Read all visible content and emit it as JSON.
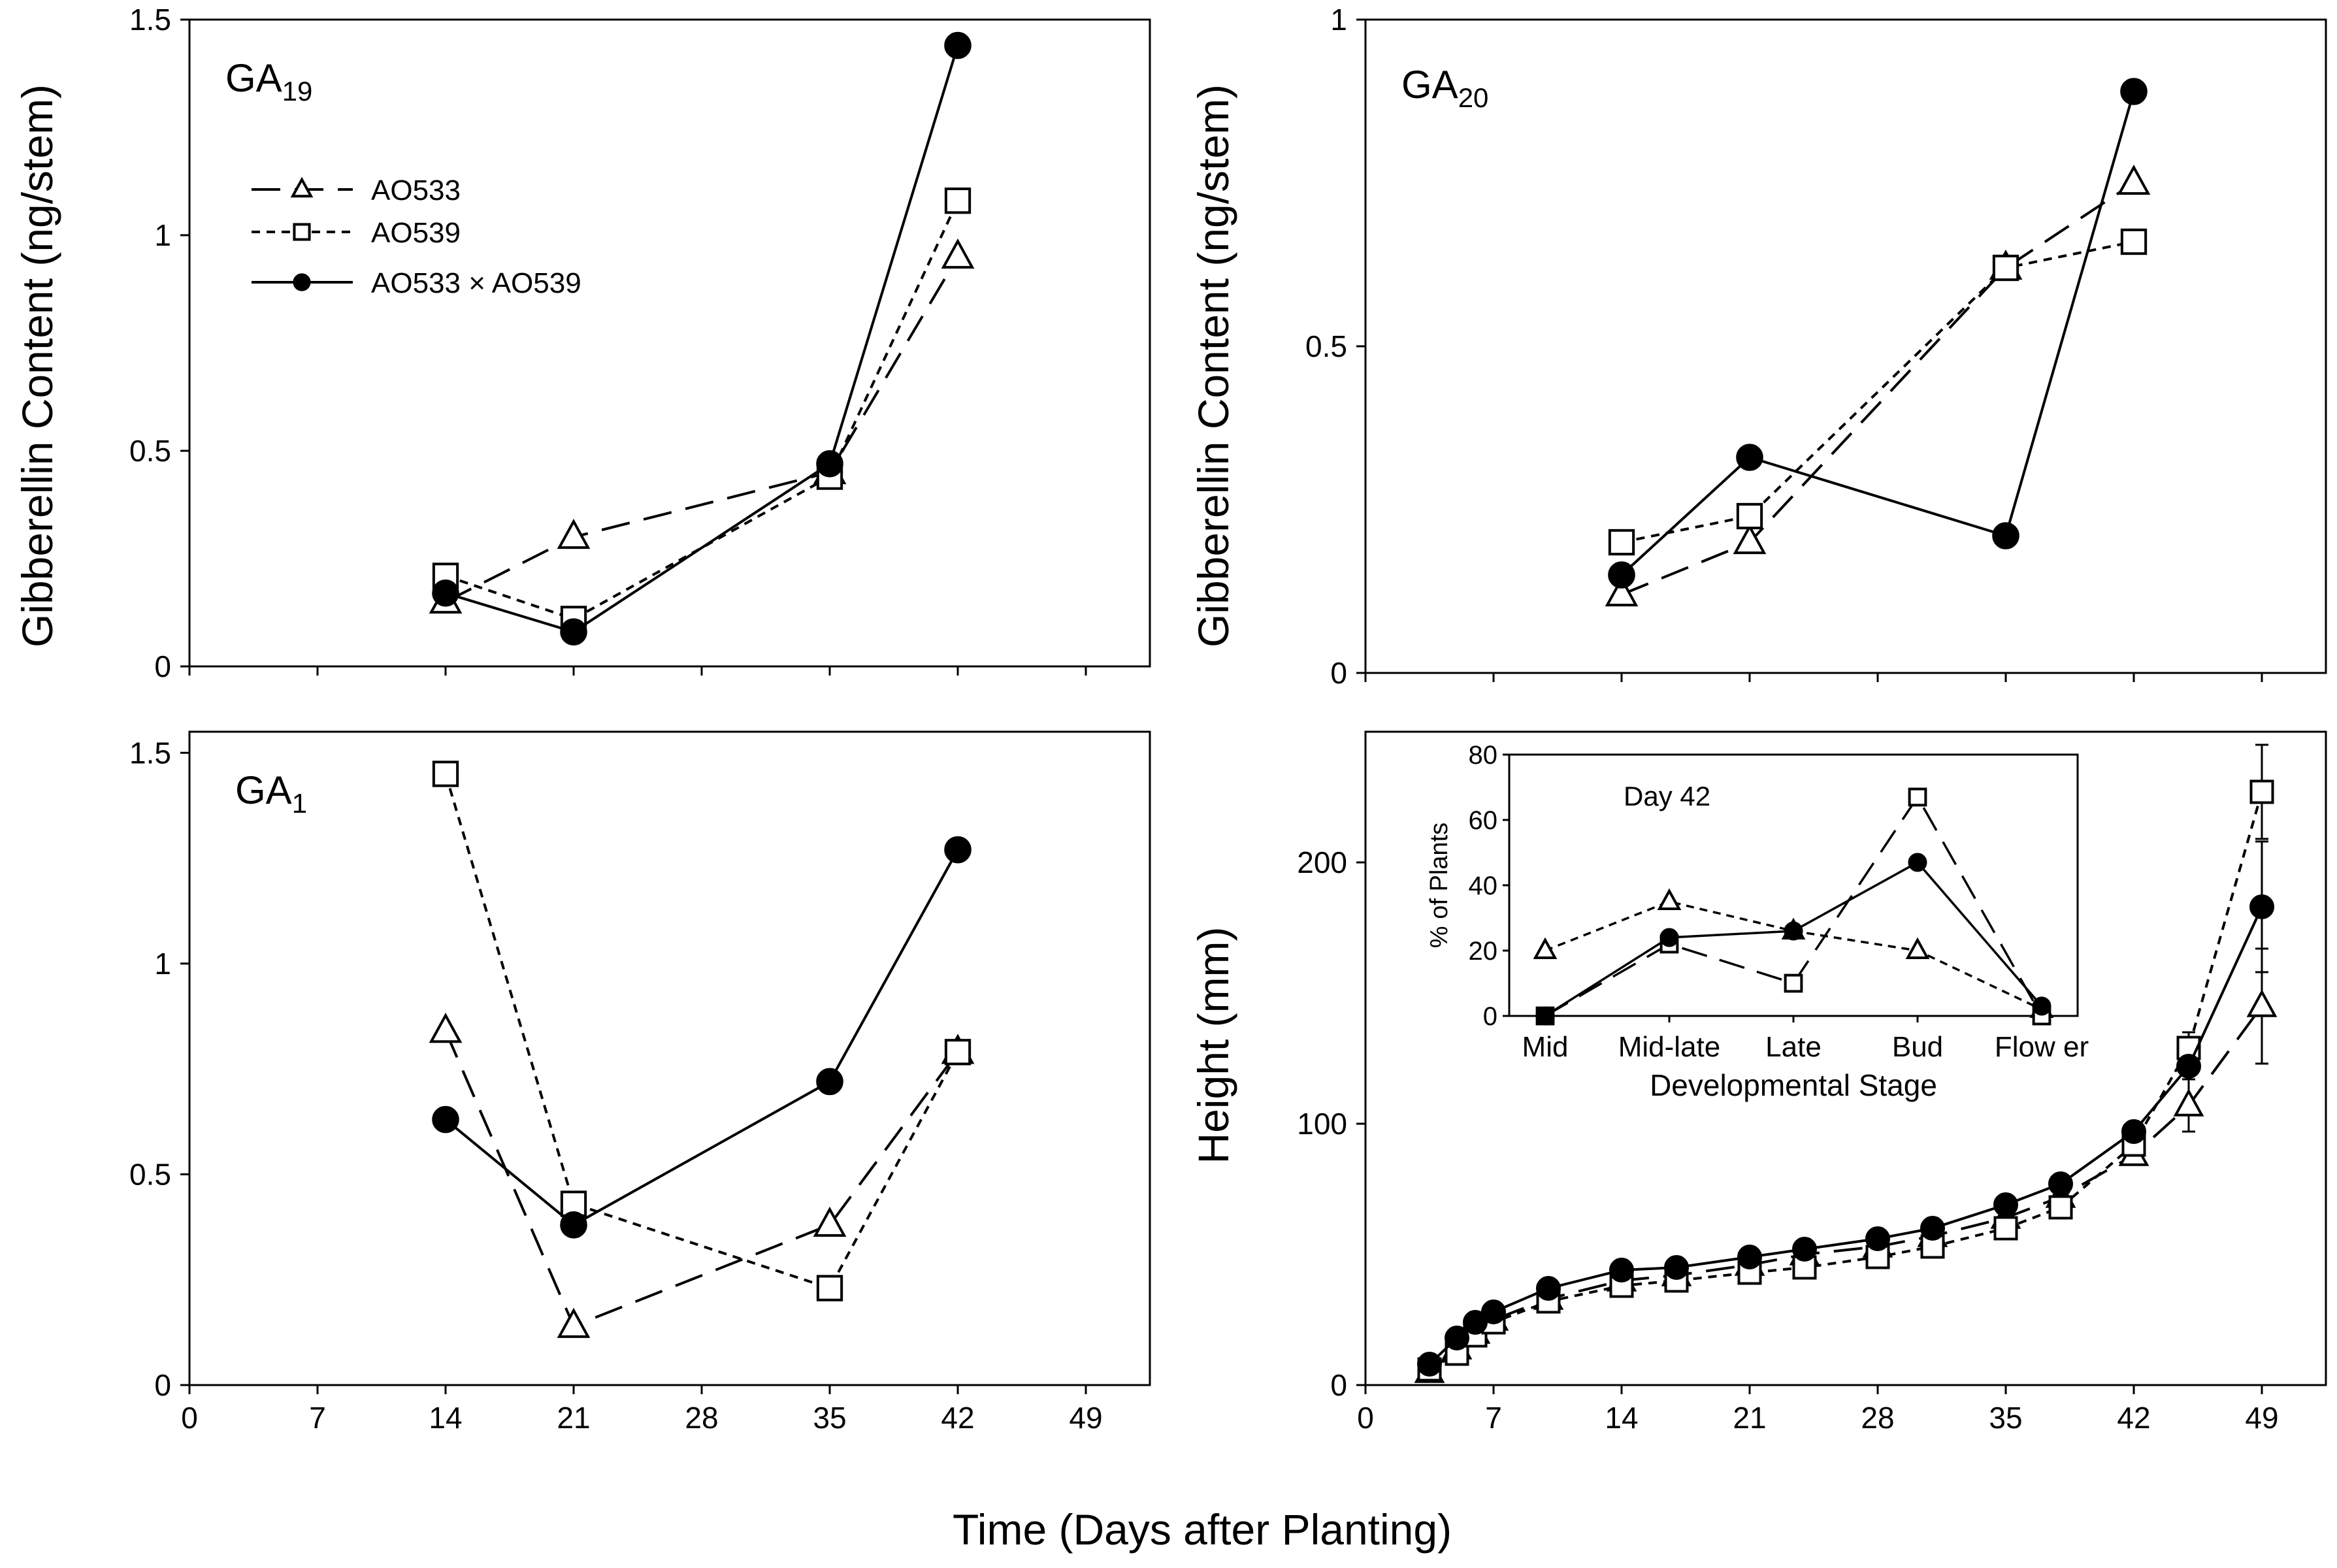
{
  "figure": {
    "x_axis_title": "Time (Days after Planting)",
    "left_y_title": "Gibberellin Content  (ng/stem)",
    "right_y_title": "Gibberellin Content  (ng/stem)",
    "height_y_title": "Height (mm)"
  },
  "legend": {
    "entries": [
      {
        "label": "AO533",
        "marker": "triangle",
        "dash": "long-dash"
      },
      {
        "label": "AO539",
        "marker": "square",
        "dash": "short-dash"
      },
      {
        "label": "AO533 × AO539",
        "marker": "circle",
        "dash": "solid"
      }
    ]
  },
  "chart_data": [
    {
      "id": "ga19",
      "type": "line",
      "title": "GA19",
      "title_main": "GA",
      "title_sub": "19",
      "x": [
        14,
        21,
        35,
        42
      ],
      "xlim": [
        0,
        52.5
      ],
      "ylim": [
        0,
        1.5
      ],
      "yticks": [
        0,
        0.5,
        1,
        1.5
      ],
      "ytick_labels": [
        "0",
        "0.5",
        "1",
        "1.5"
      ],
      "series": [
        {
          "name": "AO533",
          "marker": "triangle",
          "values": [
            0.15,
            0.3,
            0.45,
            0.95
          ]
        },
        {
          "name": "AO539",
          "marker": "square",
          "values": [
            0.21,
            0.11,
            0.44,
            1.08
          ]
        },
        {
          "name": "AO533 × AO539",
          "marker": "circle",
          "values": [
            0.17,
            0.08,
            0.47,
            1.44
          ]
        }
      ]
    },
    {
      "id": "ga20",
      "type": "line",
      "title": "GA20",
      "title_main": "GA",
      "title_sub": "20",
      "x": [
        14,
        21,
        35,
        42
      ],
      "xlim": [
        0,
        52.5
      ],
      "ylim": [
        0,
        1
      ],
      "yticks": [
        0,
        0.5,
        1
      ],
      "ytick_labels": [
        "0",
        "0.5",
        "1"
      ],
      "series": [
        {
          "name": "AO533",
          "marker": "triangle",
          "values": [
            0.12,
            0.2,
            0.62,
            0.75
          ]
        },
        {
          "name": "AO539",
          "marker": "square",
          "values": [
            0.2,
            0.24,
            0.62,
            0.66
          ]
        },
        {
          "name": "AO533 × AO539",
          "marker": "circle",
          "values": [
            0.15,
            0.33,
            0.21,
            0.89
          ]
        }
      ]
    },
    {
      "id": "ga1",
      "type": "line",
      "title": "GA1",
      "title_main": "GA",
      "title_sub": "1",
      "x": [
        14,
        21,
        35,
        42
      ],
      "xlim": [
        0,
        52.5
      ],
      "xticks": [
        0,
        7,
        14,
        21,
        28,
        35,
        42,
        49
      ],
      "xtick_labels": [
        "0",
        "7",
        "14",
        "21",
        "28",
        "35",
        "42",
        "49"
      ],
      "ylim": [
        0,
        1.55
      ],
      "yticks": [
        0,
        0.5,
        1,
        1.5
      ],
      "ytick_labels": [
        "0",
        "0.5",
        "1",
        "1.5"
      ],
      "series": [
        {
          "name": "AO533",
          "marker": "triangle",
          "values": [
            0.84,
            0.14,
            0.38,
            0.79
          ]
        },
        {
          "name": "AO539",
          "marker": "square",
          "values": [
            1.45,
            0.43,
            0.23,
            0.79
          ]
        },
        {
          "name": "AO533 × AO539",
          "marker": "circle",
          "values": [
            0.63,
            0.38,
            0.72,
            1.27
          ]
        }
      ]
    },
    {
      "id": "height",
      "type": "line",
      "title": "",
      "x": [
        3.5,
        5,
        6,
        7,
        10,
        14,
        17,
        21,
        24,
        28,
        31,
        35,
        38,
        42,
        45,
        49
      ],
      "xlim": [
        0,
        52.5
      ],
      "xticks": [
        0,
        7,
        14,
        21,
        28,
        35,
        42,
        49
      ],
      "xtick_labels": [
        "0",
        "7",
        "14",
        "21",
        "28",
        "35",
        "42",
        "49"
      ],
      "ylim": [
        0,
        250
      ],
      "yticks": [
        0,
        100,
        200
      ],
      "ytick_labels": [
        "0",
        "100",
        "200"
      ],
      "series": [
        {
          "name": "AO533",
          "marker": "triangle",
          "values": [
            5,
            14,
            20,
            25,
            33,
            40,
            42,
            46,
            50,
            53,
            57,
            64,
            72,
            88,
            107,
            145
          ],
          "error": [
            0,
            0,
            0,
            0,
            0,
            0,
            0,
            0,
            0,
            0,
            0,
            0,
            0,
            0,
            10,
            22
          ]
        },
        {
          "name": "AO539",
          "marker": "square",
          "values": [
            6,
            12,
            19,
            24,
            32,
            38,
            40,
            43,
            45,
            49,
            53,
            60,
            68,
            92,
            129,
            227
          ],
          "error": [
            0,
            0,
            0,
            0,
            0,
            0,
            0,
            0,
            0,
            0,
            0,
            0,
            0,
            0,
            6,
            18
          ]
        },
        {
          "name": "AO533 × AO539",
          "marker": "circle",
          "values": [
            8,
            18,
            24,
            28,
            37,
            44,
            45,
            49,
            52,
            56,
            60,
            69,
            77,
            97,
            122,
            183
          ],
          "error": [
            0,
            0,
            0,
            0,
            0,
            0,
            0,
            0,
            0,
            0,
            0,
            0,
            0,
            0,
            0,
            25
          ]
        }
      ]
    },
    {
      "id": "inset",
      "type": "line",
      "title": "Day 42",
      "categories": [
        "Mid",
        "Mid-late",
        "Late",
        "Bud",
        "Flow er"
      ],
      "xlabel": "Developmental Stage",
      "ylabel": "% of Plants",
      "ylim": [
        0,
        80
      ],
      "yticks": [
        0,
        20,
        40,
        60,
        80
      ],
      "ytick_labels": [
        "0",
        "20",
        "40",
        "60",
        "80"
      ],
      "series": [
        {
          "name": "AO533",
          "marker": "triangle",
          "dash": "short-dash",
          "values": [
            20,
            35,
            26,
            20,
            2
          ]
        },
        {
          "name": "AO539",
          "marker": "square",
          "dash": "long-dash",
          "values": [
            0,
            22,
            10,
            67,
            0
          ]
        },
        {
          "name": "AO533 × AO539",
          "marker": "circle",
          "dash": "solid",
          "values": [
            0,
            24,
            26,
            47,
            3
          ]
        }
      ]
    }
  ]
}
